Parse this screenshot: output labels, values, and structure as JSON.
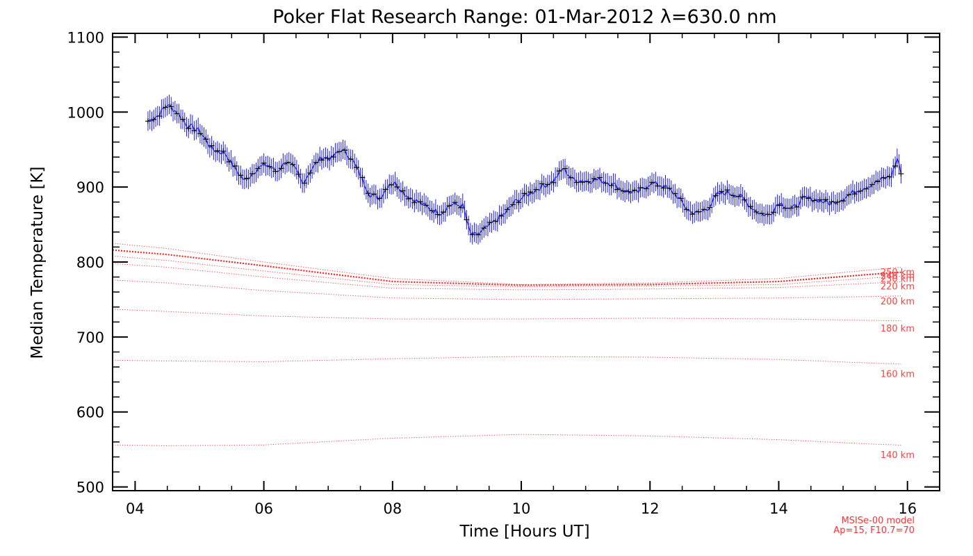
{
  "chart_data": {
    "type": "line",
    "title": "Poker Flat Research Range: 01-Mar-2012 λ=630.0 nm",
    "xlabel": "Time [Hours UT]",
    "ylabel": "Median Temperature [K]",
    "xlim": [
      3.65,
      16.5
    ],
    "ylim": [
      495,
      1105
    ],
    "xticks": [
      4,
      6,
      8,
      10,
      12,
      14,
      16
    ],
    "xtick_labels": [
      "04",
      "06",
      "08",
      "10",
      "12",
      "14",
      "16"
    ],
    "yticks": [
      500,
      600,
      700,
      800,
      900,
      1000,
      1100
    ],
    "ytick_labels": [
      "500",
      "600",
      "700",
      "800",
      "900",
      "1000",
      "1100"
    ],
    "grid": false,
    "measured": {
      "name": "",
      "color": "#1a1aff",
      "marker_color": "#000000",
      "error_K": 13,
      "x": [
        4.2,
        4.35,
        4.5,
        4.65,
        4.8,
        5.0,
        5.2,
        5.4,
        5.55,
        5.7,
        5.9,
        6.05,
        6.2,
        6.35,
        6.5,
        6.6,
        6.75,
        6.9,
        7.05,
        7.2,
        7.35,
        7.5,
        7.65,
        7.8,
        7.95,
        8.05,
        8.2,
        8.4,
        8.6,
        8.75,
        8.9,
        9.1,
        9.2,
        9.3,
        9.45,
        9.6,
        9.75,
        9.9,
        10.1,
        10.3,
        10.5,
        10.65,
        10.8,
        11.0,
        11.2,
        11.4,
        11.6,
        11.8,
        12.0,
        12.2,
        12.4,
        12.6,
        12.75,
        12.9,
        13.05,
        13.2,
        13.4,
        13.55,
        13.7,
        13.85,
        14.0,
        14.2,
        14.4,
        14.6,
        14.8,
        15.0,
        15.2,
        15.4,
        15.6,
        15.75,
        15.85,
        15.9
      ],
      "y": [
        988,
        995,
        1010,
        1000,
        983,
        975,
        950,
        945,
        925,
        908,
        925,
        930,
        920,
        935,
        922,
        905,
        925,
        940,
        938,
        950,
        940,
        915,
        890,
        885,
        905,
        905,
        890,
        880,
        870,
        865,
        877,
        875,
        838,
        835,
        845,
        855,
        865,
        880,
        890,
        900,
        908,
        925,
        910,
        908,
        910,
        905,
        895,
        892,
        905,
        902,
        890,
        868,
        865,
        872,
        890,
        893,
        888,
        875,
        865,
        862,
        880,
        870,
        885,
        883,
        878,
        885,
        895,
        902,
        910,
        915,
        940,
        918
      ]
    },
    "model": {
      "color": "#ff2020",
      "label_note_1": "MSISe-00 model",
      "label_note_2": "Ap=15, F10.7=70",
      "x": [
        3.65,
        4.5,
        6,
        8,
        10,
        12,
        14,
        15.5,
        16.5
      ],
      "series": [
        {
          "name": "250 km",
          "values": [
            825,
            818,
            800,
            778,
            770,
            772,
            778,
            790,
            798
          ]
        },
        {
          "name": "240 km",
          "values": [
            816,
            810,
            795,
            774,
            769,
            770,
            774,
            784,
            790
          ]
        },
        {
          "name": "230 km",
          "values": [
            808,
            802,
            788,
            770,
            767,
            768,
            770,
            779,
            784
          ]
        },
        {
          "name": "220 km",
          "values": [
            798,
            793,
            780,
            765,
            763,
            764,
            766,
            772,
            776
          ]
        },
        {
          "name": "200 km",
          "values": [
            776,
            772,
            762,
            752,
            750,
            751,
            752,
            754,
            756
          ]
        },
        {
          "name": "180 km",
          "values": [
            737,
            734,
            728,
            724,
            724,
            725,
            724,
            722,
            721
          ]
        },
        {
          "name": "160 km",
          "values": [
            669,
            668,
            667,
            671,
            674,
            673,
            670,
            665,
            662
          ]
        },
        {
          "name": "140 km",
          "values": [
            556,
            555,
            556,
            565,
            570,
            568,
            563,
            557,
            554
          ]
        }
      ],
      "labels": [
        {
          "text": "250 km",
          "value": 787
        },
        {
          "text": "240 km",
          "value": 782
        },
        {
          "text": "230 km",
          "value": 778
        },
        {
          "text": "220 km",
          "value": 768
        },
        {
          "text": "200 km",
          "value": 748
        },
        {
          "text": "180 km",
          "value": 712
        },
        {
          "text": "160 km",
          "value": 651
        },
        {
          "text": "140 km",
          "value": 543
        }
      ]
    }
  }
}
